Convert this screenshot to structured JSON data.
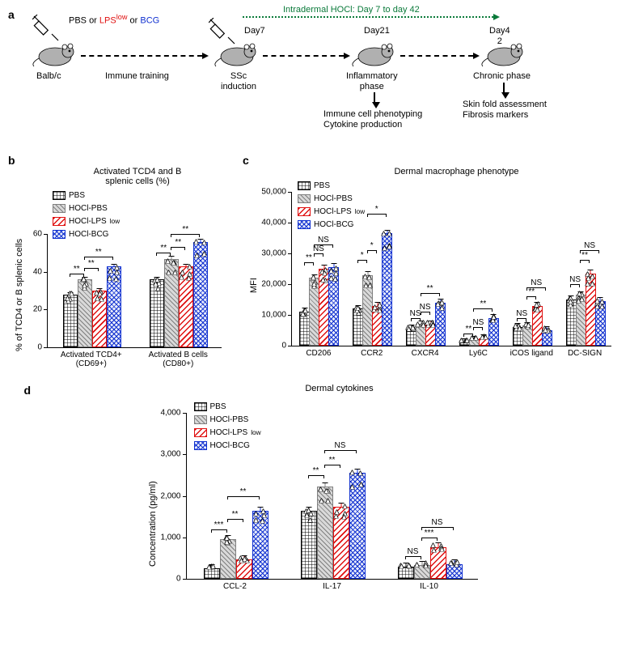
{
  "colors": {
    "pbs_fill": "#ffffff",
    "pbs_border": "#000000",
    "hocl_pbs_fill": "#d0d0d0",
    "hocl_pbs_border": "#808080",
    "lps_fill": "#ffffff",
    "lps_border": "#e01010",
    "bcg_fill": "#ffffff",
    "bcg_border": "#1030d0",
    "green": "#0a7a3a"
  },
  "panel_a": {
    "label": "a",
    "treatments": "PBS or ",
    "treatment_lps": "LPS",
    "treatment_lps_sup": "low",
    "treatment_or": " or ",
    "treatment_bcg": "BCG",
    "strain": "Balb/c",
    "immune_training": "Immune training",
    "hocl_text": "Intradermal HOCl: Day 7 to day 42",
    "day7": "Day7",
    "ssc": "SSc\ninduction",
    "day21": "Day2",
    "day21b": "1",
    "inflam": "Inflammatory\nphase",
    "inflam_out": "Immune cell phenotyping\nCytokine production",
    "day42": "Day4",
    "day42b": "2",
    "chronic": "Chronic phase",
    "chronic_out": "Skin fold assessment\nFibrosis markers"
  },
  "legend": {
    "pbs": "PBS",
    "hocl_pbs": "HOCl-PBS",
    "hocl_lps": "HOCl-LPS",
    "hocl_lps_sup": "low",
    "hocl_bcg": "HOCl-BCG"
  },
  "panel_b": {
    "label": "b",
    "title": "Activated TCD4 and B\nsplenic cells (%)",
    "y_label": "% of TCD4 or B splenic cells",
    "ymax": 60,
    "ytick": 20,
    "categories": [
      "Activated TCD4+\n(CD69+)",
      "Activated B cells\n(CD80+)"
    ],
    "series": [
      {
        "name": "PBS",
        "values": [
          27,
          35
        ]
      },
      {
        "name": "HOCl-PBS",
        "values": [
          35,
          46
        ]
      },
      {
        "name": "HOCl-LPS",
        "values": [
          29,
          42
        ]
      },
      {
        "name": "HOCl-BCG",
        "values": [
          42,
          55
        ]
      }
    ],
    "sig": [
      {
        "cat": 0,
        "text": "**",
        "from": 0,
        "to": 1,
        "y": 39
      },
      {
        "cat": 0,
        "text": "**",
        "from": 1,
        "to": 2,
        "y": 42
      },
      {
        "cat": 0,
        "text": "**",
        "from": 1,
        "to": 3,
        "y": 48
      },
      {
        "cat": 1,
        "text": "**",
        "from": 0,
        "to": 1,
        "y": 50
      },
      {
        "cat": 1,
        "text": "**",
        "from": 1,
        "to": 2,
        "y": 53
      },
      {
        "cat": 1,
        "text": "**",
        "from": 1,
        "to": 3,
        "y": 60
      }
    ]
  },
  "panel_c": {
    "label": "c",
    "title": "Dermal macrophage phenotype",
    "y_label": "MFI",
    "ymax": 50000,
    "ytick": 10000,
    "categories": [
      "CD206",
      "CCR2",
      "CXCR4",
      "Ly6C",
      "iCOS ligand",
      "DC-SIGN"
    ],
    "series": [
      {
        "name": "PBS",
        "values": [
          10500,
          11500,
          5000,
          500,
          5500,
          14500
        ]
      },
      {
        "name": "HOCl-PBS",
        "values": [
          21500,
          22500,
          6500,
          1500,
          6000,
          16000
        ]
      },
      {
        "name": "HOCl-LPS",
        "values": [
          24500,
          12500,
          6500,
          1800,
          12500,
          23000
        ]
      },
      {
        "name": "HOCl-BCG",
        "values": [
          25000,
          36000,
          13500,
          8500,
          4500,
          14000
        ]
      }
    ],
    "sig": [
      {
        "cat": 0,
        "text": "**",
        "from": 0,
        "to": 1,
        "y": 27000
      },
      {
        "cat": 0,
        "text": "NS",
        "from": 1,
        "to": 2,
        "y": 30000
      },
      {
        "cat": 0,
        "text": "NS",
        "from": 1,
        "to": 3,
        "y": 33000
      },
      {
        "cat": 1,
        "text": "*",
        "from": 0,
        "to": 1,
        "y": 28000
      },
      {
        "cat": 1,
        "text": "*",
        "from": 1,
        "to": 2,
        "y": 31000
      },
      {
        "cat": 1,
        "text": "*",
        "from": 1,
        "to": 3,
        "y": 43000
      },
      {
        "cat": 2,
        "text": "NS",
        "from": 1,
        "to": 2,
        "y": 11000
      },
      {
        "cat": 2,
        "text": "NS",
        "from": 0,
        "to": 1,
        "y": 9000
      },
      {
        "cat": 2,
        "text": "**",
        "from": 1,
        "to": 3,
        "y": 17000
      },
      {
        "cat": 3,
        "text": "**",
        "from": 0,
        "to": 1,
        "y": 4000
      },
      {
        "cat": 3,
        "text": "NS",
        "from": 1,
        "to": 2,
        "y": 6000
      },
      {
        "cat": 3,
        "text": "**",
        "from": 1,
        "to": 3,
        "y": 12000
      },
      {
        "cat": 4,
        "text": "NS",
        "from": 0,
        "to": 1,
        "y": 9000
      },
      {
        "cat": 4,
        "text": "**",
        "from": 1,
        "to": 2,
        "y": 16000
      },
      {
        "cat": 4,
        "text": "NS",
        "from": 1,
        "to": 3,
        "y": 19000
      },
      {
        "cat": 5,
        "text": "NS",
        "from": 0,
        "to": 1,
        "y": 20000
      },
      {
        "cat": 5,
        "text": "**",
        "from": 1,
        "to": 2,
        "y": 28000
      },
      {
        "cat": 5,
        "text": "NS",
        "from": 1,
        "to": 3,
        "y": 31000
      }
    ]
  },
  "panel_d": {
    "label": "d",
    "title": "Dermal cytokines",
    "y_label": "Concentration (pg/ml)",
    "ymax": 4000,
    "ytick": 1000,
    "categories": [
      "CCL-2",
      "IL-17",
      "IL-10"
    ],
    "series": [
      {
        "name": "PBS",
        "values": [
          220,
          1600,
          250
        ]
      },
      {
        "name": "HOCl-PBS",
        "values": [
          920,
          2180,
          290
        ]
      },
      {
        "name": "HOCl-LPS",
        "values": [
          430,
          1700,
          730
        ]
      },
      {
        "name": "HOCl-BCG",
        "values": [
          1600,
          2520,
          320
        ]
      }
    ],
    "sig": [
      {
        "cat": 0,
        "text": "***",
        "from": 0,
        "to": 1,
        "y": 1200
      },
      {
        "cat": 0,
        "text": "**",
        "from": 1,
        "to": 2,
        "y": 1450
      },
      {
        "cat": 0,
        "text": "**",
        "from": 1,
        "to": 3,
        "y": 2000
      },
      {
        "cat": 1,
        "text": "**",
        "from": 0,
        "to": 1,
        "y": 2500
      },
      {
        "cat": 1,
        "text": "**",
        "from": 1,
        "to": 2,
        "y": 2750
      },
      {
        "cat": 1,
        "text": "NS",
        "from": 1,
        "to": 3,
        "y": 3100
      },
      {
        "cat": 2,
        "text": "NS",
        "from": 0,
        "to": 1,
        "y": 550
      },
      {
        "cat": 2,
        "text": "***",
        "from": 1,
        "to": 2,
        "y": 1000
      },
      {
        "cat": 2,
        "text": "NS",
        "from": 1,
        "to": 3,
        "y": 1250
      }
    ]
  }
}
